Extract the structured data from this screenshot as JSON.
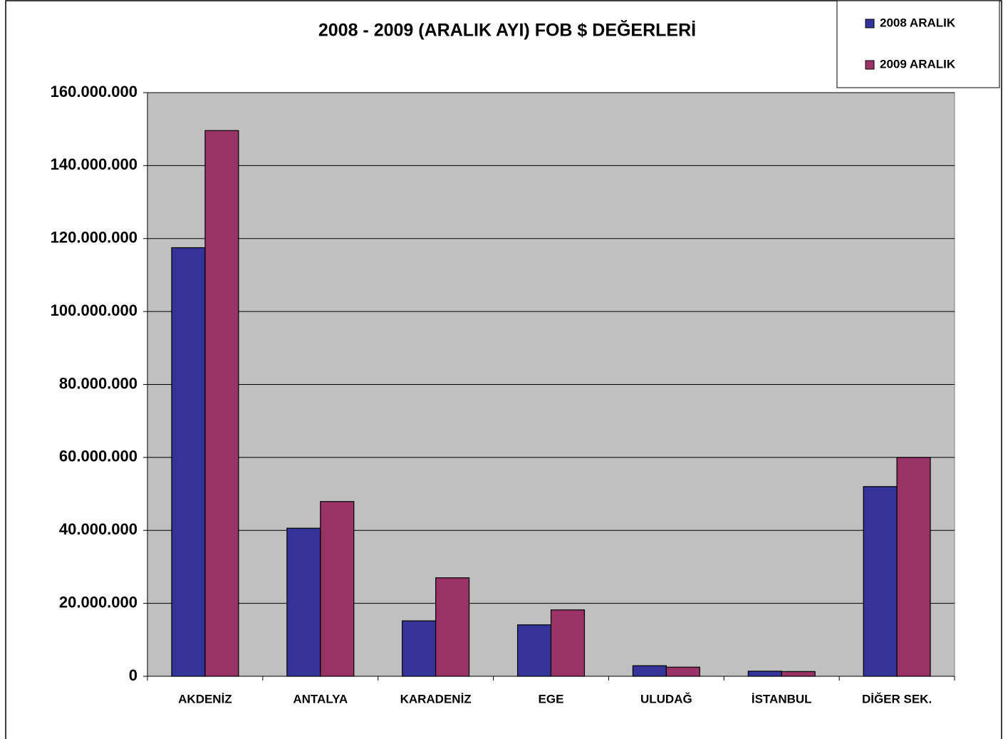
{
  "chart_data": {
    "type": "bar",
    "title": "2008 - 2009 (ARALIK AYI) FOB $ DEĞERLERİ",
    "categories": [
      "AKDENİZ",
      "ANTALYA",
      "KARADENİZ",
      "EGE",
      "ULUDAĞ",
      "İSTANBUL",
      "DİĞER SEK."
    ],
    "series": [
      {
        "name": "2008 ARALIK",
        "color": "#333399",
        "values": [
          117500000,
          40600000,
          15200000,
          14100000,
          2900000,
          1400000,
          52000000
        ]
      },
      {
        "name": "2009 ARALIK",
        "color": "#993366",
        "values": [
          149600000,
          47900000,
          27000000,
          18200000,
          2500000,
          1300000,
          60000000
        ]
      }
    ],
    "ylim": [
      0,
      160000000
    ],
    "yticks": [
      0,
      {
        "value": 20000000,
        "label": "20.000.000"
      },
      {
        "value": 40000000,
        "label": "40.000.000"
      },
      {
        "value": 60000000,
        "label": "60.000.000"
      },
      {
        "value": 80000000,
        "label": "80.000.000"
      },
      {
        "value": 100000000,
        "label": "100.000.000"
      },
      {
        "value": 120000000,
        "label": "120.000.000"
      },
      {
        "value": 140000000,
        "label": "140.000.000"
      },
      {
        "value": 160000000,
        "label": "160.000.000"
      }
    ],
    "grid": true,
    "legend": "top-right",
    "plot_background": "#c0c0c0"
  }
}
